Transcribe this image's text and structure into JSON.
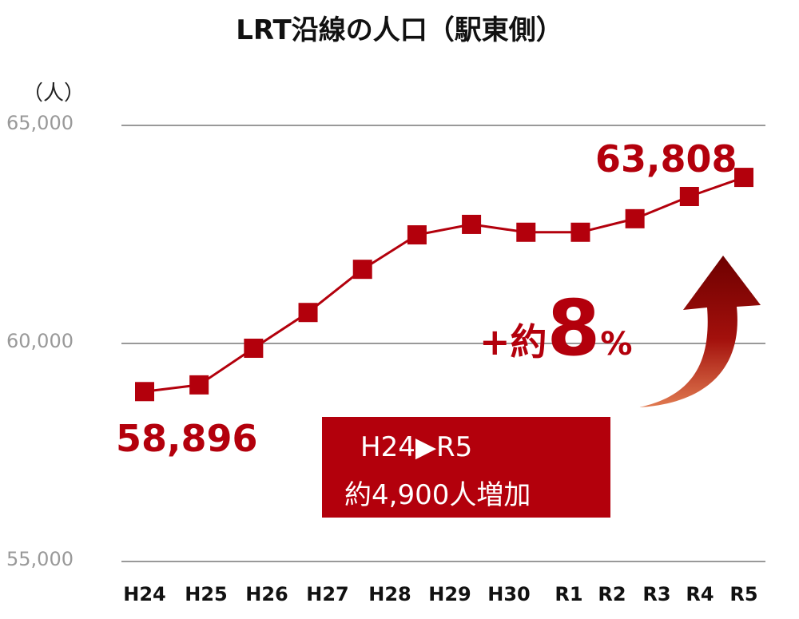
{
  "chart_data": {
    "type": "line",
    "title": "LRT沿線の人口（駅東側）",
    "ylabel": "（人）",
    "xlabel": "",
    "categories": [
      "H24",
      "H25",
      "H26",
      "H27",
      "H28",
      "H29",
      "H30",
      "R1",
      "R2",
      "R3",
      "R4",
      "R5"
    ],
    "values": [
      58896,
      59050,
      59890,
      60710,
      61700,
      62490,
      62730,
      62550,
      62550,
      62860,
      63370,
      63808
    ],
    "ylim": [
      55000,
      65000
    ],
    "yticks": [
      "55,000",
      "60,000",
      "65,000"
    ],
    "ytick_values": [
      55000,
      60000,
      65000
    ],
    "grid": true,
    "series_color": "#b3000c",
    "data_labels": {
      "first": "58,896",
      "last": "63,808"
    },
    "annotations": {
      "box_line1": "H24▶R5",
      "box_line2": "約4,900人増加",
      "increase_prefix": "+約",
      "increase_number": "8",
      "increase_suffix": "%"
    }
  }
}
